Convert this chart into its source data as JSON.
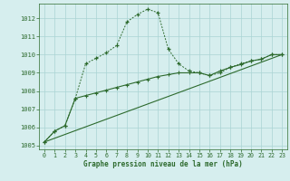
{
  "line1_x": [
    0,
    1,
    2,
    3,
    4,
    5,
    6,
    7,
    8,
    9,
    10,
    11,
    12,
    13,
    14,
    15,
    16,
    17,
    18,
    19,
    20,
    21,
    22,
    23
  ],
  "line1_y": [
    1005.2,
    1005.8,
    1006.1,
    1007.6,
    1009.5,
    1009.8,
    1010.1,
    1010.5,
    1011.8,
    1012.2,
    1012.5,
    1012.3,
    1010.3,
    1009.5,
    1009.1,
    1009.0,
    1008.85,
    1009.0,
    1009.3,
    1009.5,
    1009.65,
    1009.75,
    1010.0,
    1010.0
  ],
  "line2_x": [
    0,
    1,
    2,
    3,
    4,
    5,
    6,
    7,
    8,
    9,
    10,
    11,
    12,
    13,
    14,
    15,
    16,
    17,
    18,
    19,
    20,
    21,
    22,
    23
  ],
  "line2_y": [
    1005.2,
    1005.8,
    1006.1,
    1007.6,
    1007.75,
    1007.9,
    1008.05,
    1008.2,
    1008.35,
    1008.5,
    1008.65,
    1008.8,
    1008.9,
    1009.0,
    1009.0,
    1009.0,
    1008.85,
    1009.1,
    1009.3,
    1009.45,
    1009.65,
    1009.75,
    1010.0,
    1010.0
  ],
  "line3_x": [
    0,
    23
  ],
  "line3_y": [
    1005.2,
    1010.0
  ],
  "color": "#2d6a2d",
  "bg_color": "#d6eeee",
  "grid_color": "#aad4d4",
  "xlabel": "Graphe pression niveau de la mer (hPa)",
  "ylim_min": 1004.8,
  "ylim_max": 1012.8,
  "xlim_min": -0.5,
  "xlim_max": 23.5,
  "yticks": [
    1005,
    1006,
    1007,
    1008,
    1009,
    1010,
    1011,
    1012
  ],
  "xticks": [
    0,
    1,
    2,
    3,
    4,
    5,
    6,
    7,
    8,
    9,
    10,
    11,
    12,
    13,
    14,
    15,
    16,
    17,
    18,
    19,
    20,
    21,
    22,
    23
  ]
}
